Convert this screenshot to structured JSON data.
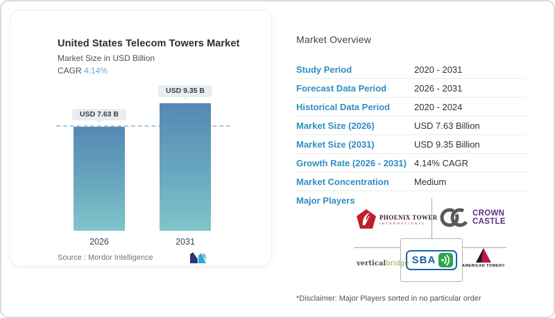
{
  "chart_card": {
    "title": "United States Telecom Towers Market",
    "subtitle": "Market Size in USD Billion",
    "cagr_label": "CAGR ",
    "cagr_value": "4.14%",
    "source_label": "Source :  Mordor Intelligence"
  },
  "chart_data": {
    "type": "bar",
    "title": "United States Telecom Towers Market",
    "ylabel": "Market Size in USD Billion",
    "categories": [
      "2026",
      "2031"
    ],
    "values": [
      7.63,
      9.35
    ],
    "bar_labels": [
      "USD 7.63 B",
      "USD 9.35 B"
    ],
    "ylim": [
      0,
      9.35
    ],
    "reference_line": 7.63,
    "legend": "none",
    "colors": {
      "bar_gradient_top": "#5588b5",
      "bar_gradient_bottom": "#7fc5cb",
      "dashed_line": "#abc4d5"
    }
  },
  "overview": {
    "heading": "Market Overview",
    "rows": [
      {
        "label": "Study Period",
        "value": "2020 - 2031"
      },
      {
        "label": "Forecast Data Period",
        "value": "2026 - 2031"
      },
      {
        "label": "Historical Data Period",
        "value": "2020 - 2024"
      },
      {
        "label": "Market Size (2026)",
        "value": "USD 7.63 Billion"
      },
      {
        "label": "Market Size (2031)",
        "value": "USD 9.35 Billion"
      },
      {
        "label": "Growth Rate (2026 - 2031)",
        "value": "4.14% CAGR"
      },
      {
        "label": "Market Concentration",
        "value": "Medium"
      }
    ],
    "major_players_label": "Major Players",
    "disclaimer": "*Disclaimer: Major Players sorted in no particular order"
  },
  "players": {
    "phoenix_line1": "PHOENIX TOWER",
    "phoenix_line2": "INTERNATIONAL",
    "crown_line1": "CROWN",
    "crown_line2": "CASTLE",
    "vb_part1": "vertical",
    "vb_part2": "bridge",
    "sba_text": "SBA",
    "at_text": "AMERICAN TOWER®"
  },
  "brand_colors": {
    "phoenix_red": "#c0202c",
    "crown_gray": "#58595b",
    "crown_purple": "#5b2d84",
    "vb_green": "#9ba544",
    "sba_blue": "#1565ad",
    "sba_green": "#2ea44a",
    "at_red": "#b91c45",
    "table_label_blue": "#2e8fc0",
    "mi_navy": "#233a70",
    "mi_cyan": "#35a7d9"
  }
}
